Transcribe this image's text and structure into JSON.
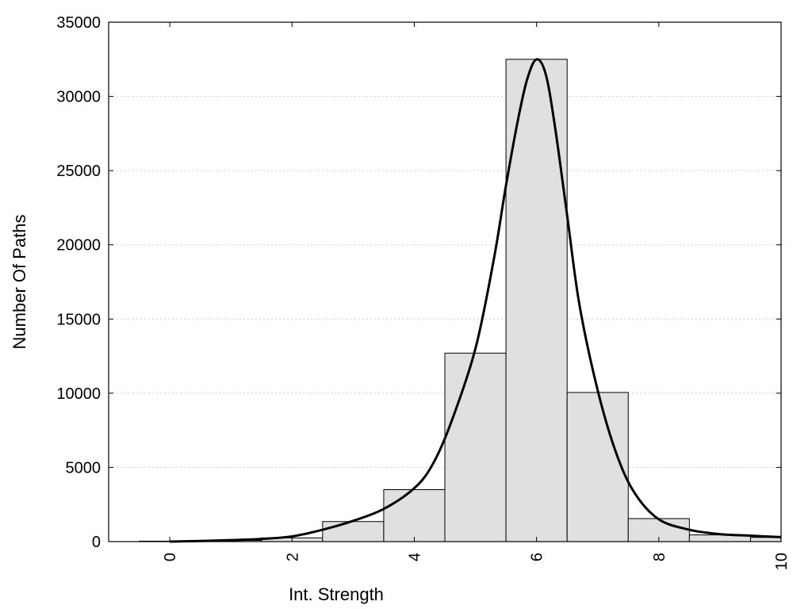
{
  "chart_data": {
    "type": "bar",
    "title": "",
    "xlabel": "Int. Strength",
    "ylabel": "Number Of Paths",
    "xlim": [
      -1,
      10
    ],
    "ylim": [
      0,
      35000
    ],
    "x_ticks": [
      0,
      2,
      4,
      6,
      8,
      10
    ],
    "y_ticks": [
      0,
      5000,
      10000,
      15000,
      20000,
      25000,
      30000,
      35000
    ],
    "grid": "horizontal dotted",
    "bars": {
      "x": [
        0,
        1,
        2,
        3,
        4,
        5,
        6,
        7,
        8,
        9,
        10
      ],
      "values": [
        30,
        80,
        250,
        1350,
        3500,
        12700,
        32500,
        10050,
        1550,
        450,
        280
      ],
      "width": 1,
      "color": "#e0e0e0"
    },
    "curve": {
      "x": [
        0,
        0.5,
        1,
        1.5,
        2,
        2.5,
        3,
        3.5,
        4,
        4.3,
        4.6,
        5,
        5.3,
        5.5,
        5.7,
        5.85,
        6,
        6.15,
        6.3,
        6.5,
        6.7,
        7,
        7.3,
        7.6,
        8,
        8.5,
        9,
        9.5,
        10
      ],
      "y": [
        0,
        40,
        100,
        180,
        350,
        800,
        1400,
        2200,
        3600,
        5200,
        8000,
        13000,
        19000,
        24000,
        28500,
        31200,
        32500,
        31500,
        28000,
        22000,
        16000,
        10200,
        6000,
        3300,
        1500,
        800,
        500,
        400,
        300
      ],
      "color": "#000000"
    }
  }
}
